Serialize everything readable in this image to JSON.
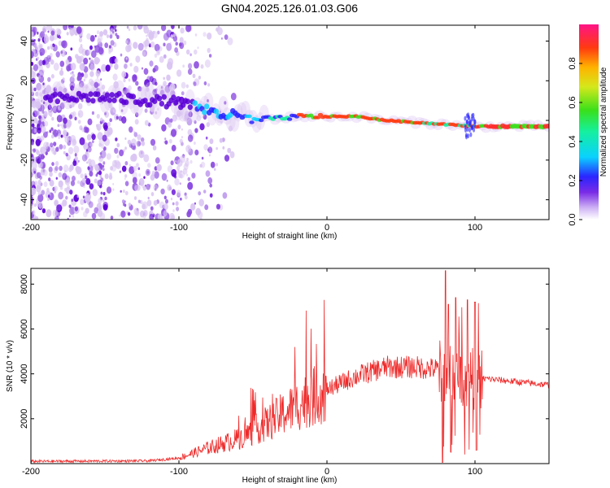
{
  "title": "GN04.2025.126.01.03.G06",
  "colors": {
    "snr_line": "#ee2a2a",
    "scatter_low": "#d9c4f2",
    "scatter_mid": "#8b4be0",
    "scatter_high": "#5b00d6"
  },
  "chart_data": [
    {
      "type": "heatmap",
      "xlabel": "Height of straight line (km)",
      "ylabel": "Frequency (Hz)",
      "xlim": [
        -200,
        150
      ],
      "ylim": [
        -50,
        48
      ],
      "xticks": [
        -200,
        -100,
        0,
        100
      ],
      "yticks": [
        -40,
        -20,
        0,
        20,
        40
      ],
      "colorbar": {
        "label": "Normalized spectral amplitude",
        "range": [
          0,
          1
        ],
        "ticks": [
          "0.0",
          "0.2",
          "0.4",
          "0.6",
          "0.8"
        ],
        "colormap": "rainbow"
      },
      "ridge": [
        {
          "x": -200,
          "f": 10
        },
        {
          "x": -160,
          "f": 12
        },
        {
          "x": -120,
          "f": 10
        },
        {
          "x": -100,
          "f": 9
        },
        {
          "x": -90,
          "f": 7
        },
        {
          "x": -80,
          "f": 5
        },
        {
          "x": -70,
          "f": 3
        },
        {
          "x": -60,
          "f": 2
        },
        {
          "x": -50,
          "f": 0
        },
        {
          "x": -40,
          "f": 1
        },
        {
          "x": -30,
          "f": 1
        },
        {
          "x": -20,
          "f": 2
        },
        {
          "x": 0,
          "f": 2
        },
        {
          "x": 20,
          "f": 2
        },
        {
          "x": 40,
          "f": 0
        },
        {
          "x": 60,
          "f": -1
        },
        {
          "x": 80,
          "f": -2
        },
        {
          "x": 100,
          "f": -3
        },
        {
          "x": 120,
          "f": -3
        },
        {
          "x": 150,
          "f": -3
        }
      ]
    },
    {
      "type": "line",
      "xlabel": "Height of straight line (km)",
      "ylabel": "SNR (10 * v/v)",
      "xlim": [
        -200,
        150
      ],
      "ylim": [
        0,
        8700
      ],
      "xticks": [
        -200,
        -100,
        0,
        100
      ],
      "yticks": [
        2000,
        4000,
        6000,
        8000
      ],
      "envelope": [
        {
          "x": -200,
          "y": 100
        },
        {
          "x": -120,
          "y": 120
        },
        {
          "x": -100,
          "y": 250
        },
        {
          "x": -80,
          "y": 700
        },
        {
          "x": -60,
          "y": 1100
        },
        {
          "x": -40,
          "y": 1800
        },
        {
          "x": -20,
          "y": 2600
        },
        {
          "x": 0,
          "y": 3300
        },
        {
          "x": 20,
          "y": 3900
        },
        {
          "x": 40,
          "y": 4300
        },
        {
          "x": 60,
          "y": 4300
        },
        {
          "x": 75,
          "y": 4200
        },
        {
          "x": 80,
          "y": 4000
        },
        {
          "x": 85,
          "y": 3900
        },
        {
          "x": 95,
          "y": 3800
        },
        {
          "x": 105,
          "y": 3800
        },
        {
          "x": 120,
          "y": 3700
        },
        {
          "x": 150,
          "y": 3500
        }
      ],
      "peaks": [
        {
          "x": 80,
          "y": 8600
        },
        {
          "x": 82,
          "y": 7100
        },
        {
          "x": 87,
          "y": 7400
        },
        {
          "x": 95,
          "y": 7300
        },
        {
          "x": 100,
          "y": 7200
        },
        {
          "x": 78,
          "y": 50
        },
        {
          "x": 101,
          "y": 600
        }
      ]
    }
  ]
}
